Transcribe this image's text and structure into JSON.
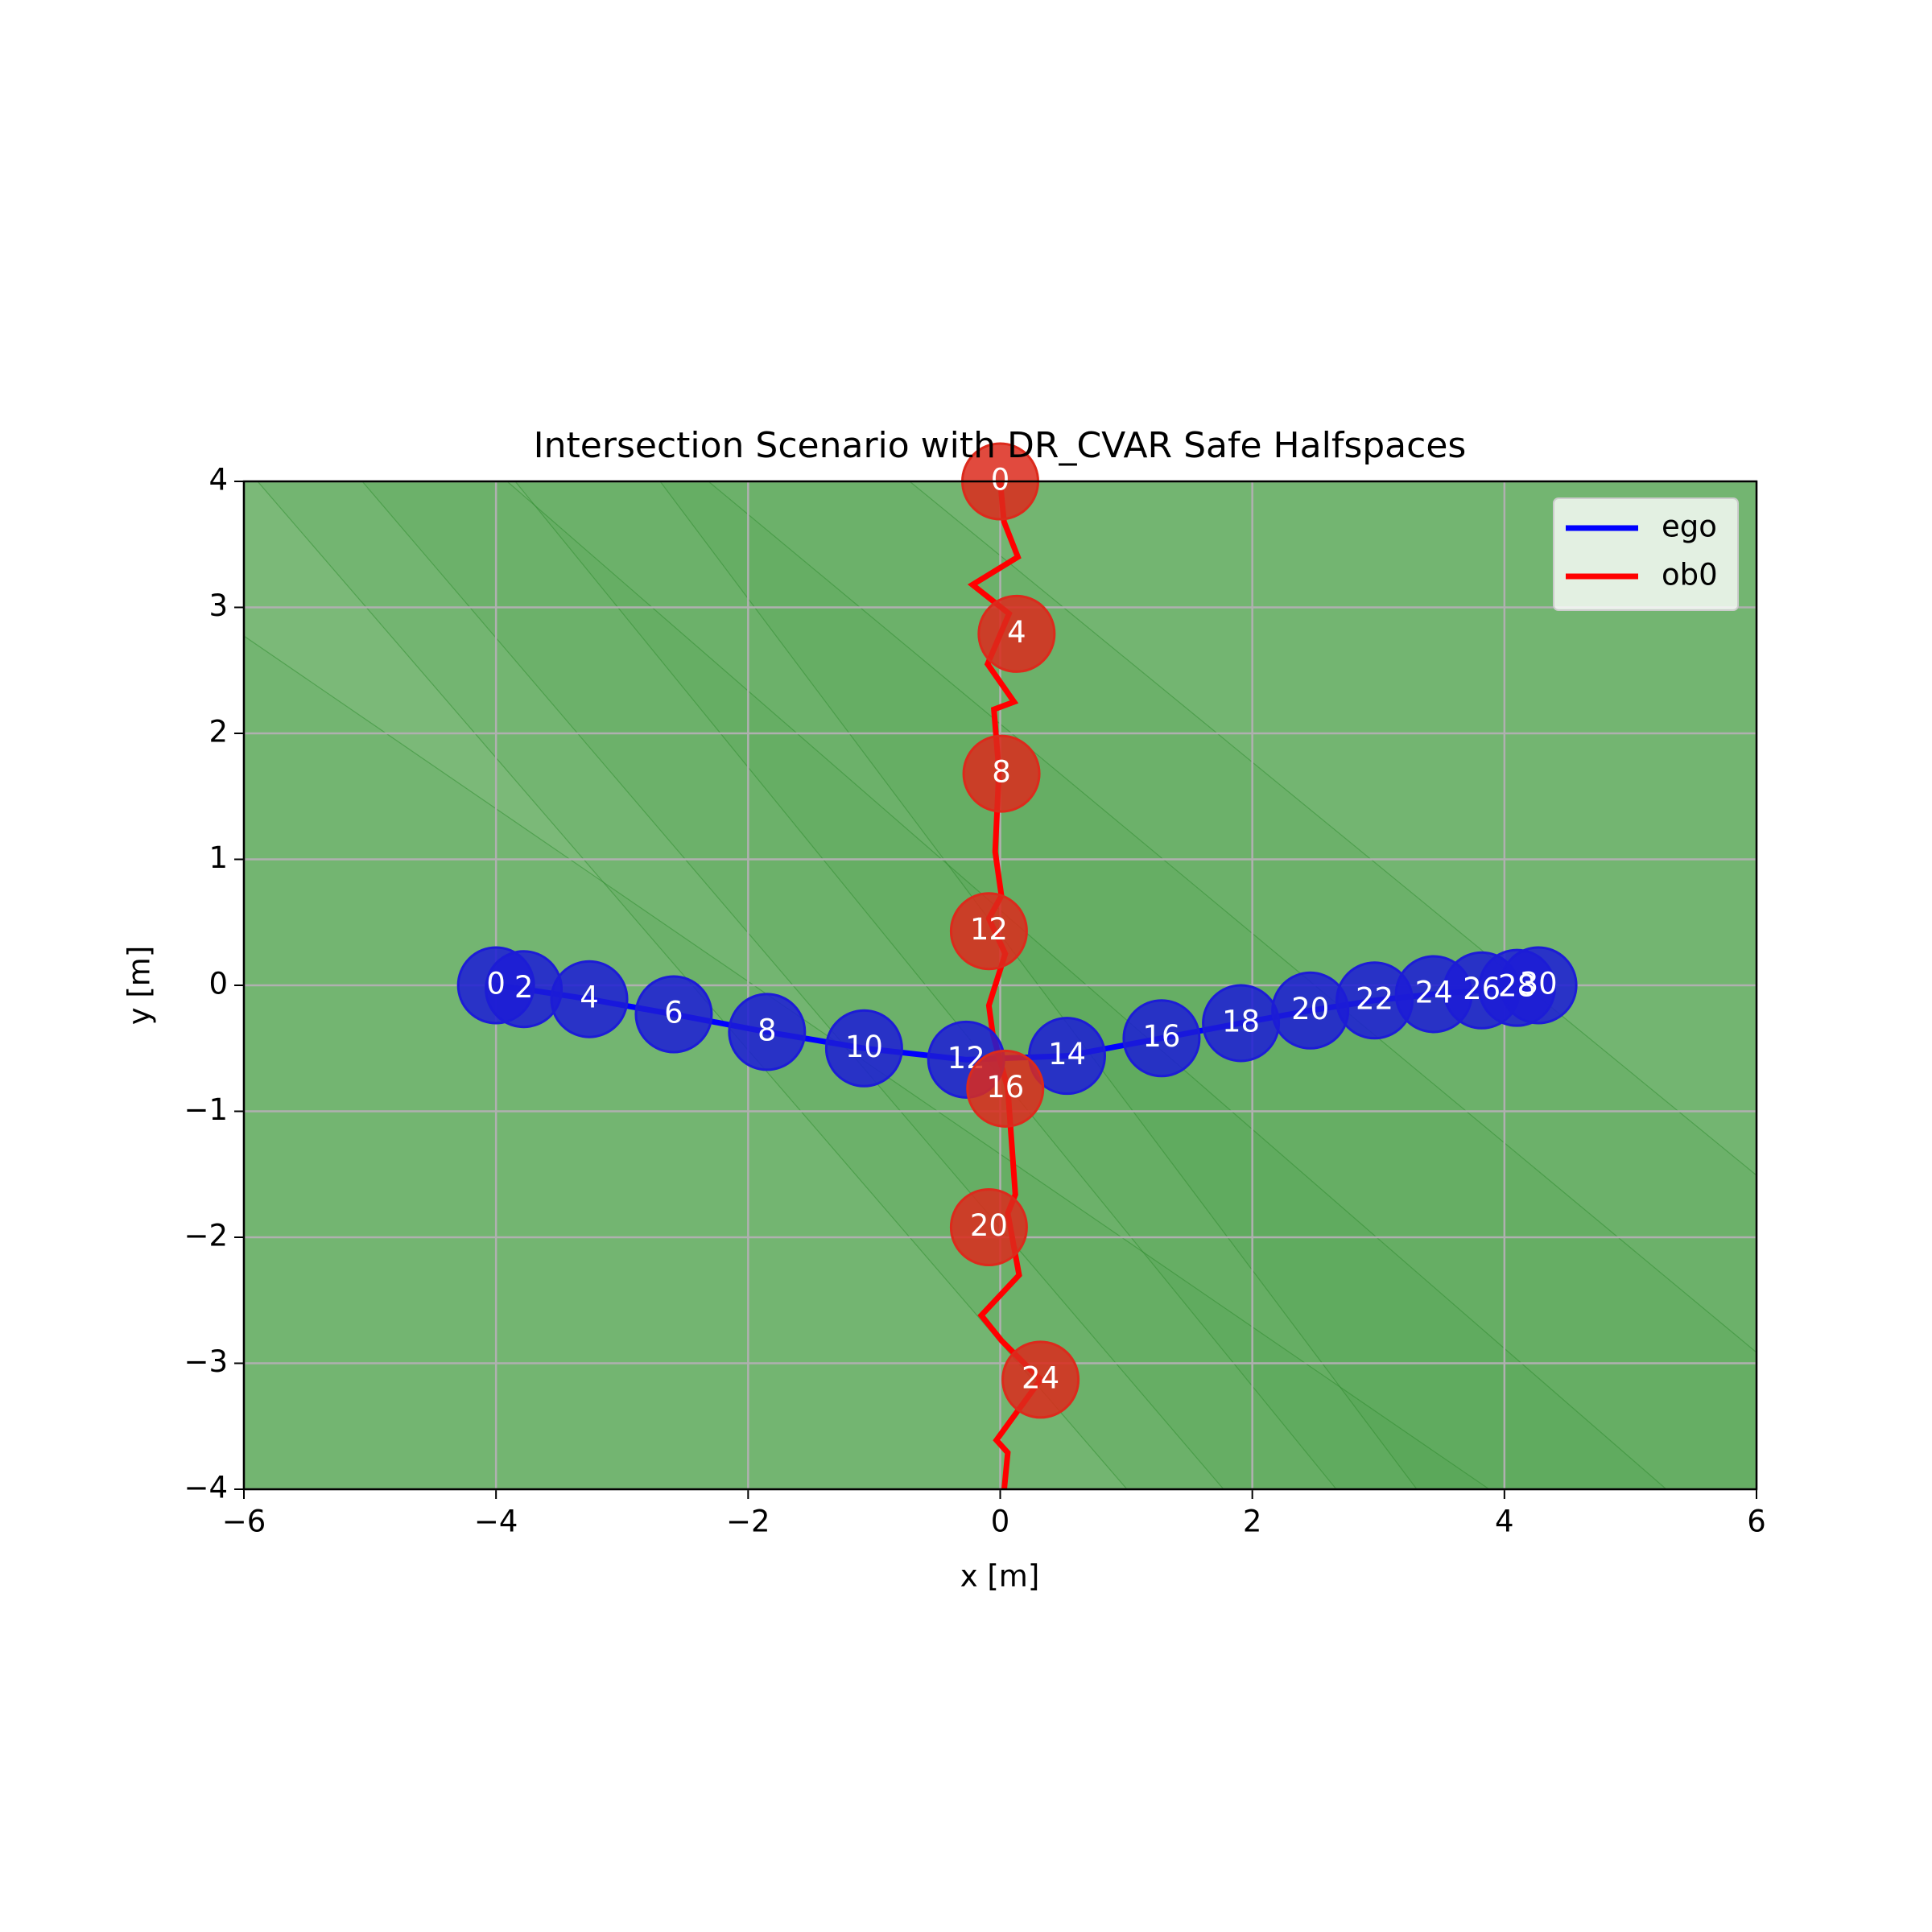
{
  "chart_data": {
    "type": "line",
    "title": "Intersection Scenario with DR_CVAR Safe Halfspaces",
    "xlabel": "x [m]",
    "ylabel": "y [m]",
    "xlim": [
      -6,
      6
    ],
    "ylim": [
      -4,
      4
    ],
    "xticks": [
      {
        "value": -6,
        "label": "−6"
      },
      {
        "value": -4,
        "label": "−4"
      },
      {
        "value": -2,
        "label": "−2"
      },
      0,
      2,
      4,
      6
    ],
    "yticks": [
      {
        "value": -4,
        "label": "−4"
      },
      {
        "value": -3,
        "label": "−3"
      },
      {
        "value": -2,
        "label": "−2"
      },
      {
        "value": -1,
        "label": "−1"
      },
      0,
      1,
      2,
      3,
      4
    ],
    "grid": true,
    "legend": "upper right",
    "series": [
      {
        "name": "ego",
        "color": "#0000ff",
        "marker_color": "#1c1cd6",
        "x": [
          -4.0,
          -3.78,
          -3.26,
          -2.59,
          -1.85,
          -1.08,
          -0.27,
          0.53,
          1.28,
          1.91,
          2.46,
          2.97,
          3.44,
          3.82,
          4.1,
          4.27
        ],
        "y": [
          0,
          -0.03,
          -0.11,
          -0.23,
          -0.37,
          -0.5,
          -0.59,
          -0.56,
          -0.42,
          -0.3,
          -0.2,
          -0.12,
          -0.07,
          -0.04,
          -0.02,
          0
        ],
        "points": {
          "x": [
            -4.0,
            -3.78,
            -3.26,
            -2.59,
            -1.85,
            -1.08,
            -0.27,
            0.53,
            1.28,
            1.91,
            2.46,
            2.97,
            3.44,
            3.82,
            4.1,
            4.27
          ],
          "y": [
            0,
            -0.03,
            -0.11,
            -0.23,
            -0.37,
            -0.5,
            -0.59,
            -0.56,
            -0.42,
            -0.3,
            -0.2,
            -0.12,
            -0.07,
            -0.04,
            -0.02,
            0
          ],
          "labels": [
            0,
            2,
            4,
            6,
            8,
            10,
            12,
            14,
            16,
            18,
            20,
            22,
            24,
            26,
            28,
            30
          ]
        }
      },
      {
        "name": "ob0",
        "color": "#ff0000",
        "marker_color": "#dc2a1c",
        "x": [
          0,
          0.03,
          0.14,
          -0.22,
          0.07,
          -0.1,
          0.11,
          -0.05,
          -0.01,
          -0.04,
          0.01,
          -0.09,
          0.04,
          -0.09,
          -0.06,
          0.06,
          0.12,
          0.06,
          0.15,
          -0.15,
          0.01,
          0.32,
          -0.03,
          0.06,
          0.03
        ],
        "y": [
          4.0,
          3.68,
          3.4,
          3.18,
          2.95,
          2.55,
          2.25,
          2.19,
          1.7,
          1.06,
          0.71,
          0.53,
          0.25,
          -0.16,
          -0.38,
          -0.82,
          -1.66,
          -1.81,
          -2.3,
          -2.62,
          -2.82,
          -3.13,
          -3.61,
          -3.71,
          -4.02
        ],
        "points": {
          "x": [
            0,
            0.13,
            0.01,
            -0.09,
            0.04,
            -0.09,
            0.32
          ],
          "y": [
            4.0,
            2.79,
            1.68,
            0.43,
            -0.82,
            -1.92,
            -3.13
          ],
          "labels": [
            0,
            4,
            8,
            12,
            16,
            20,
            24
          ]
        }
      }
    ]
  }
}
